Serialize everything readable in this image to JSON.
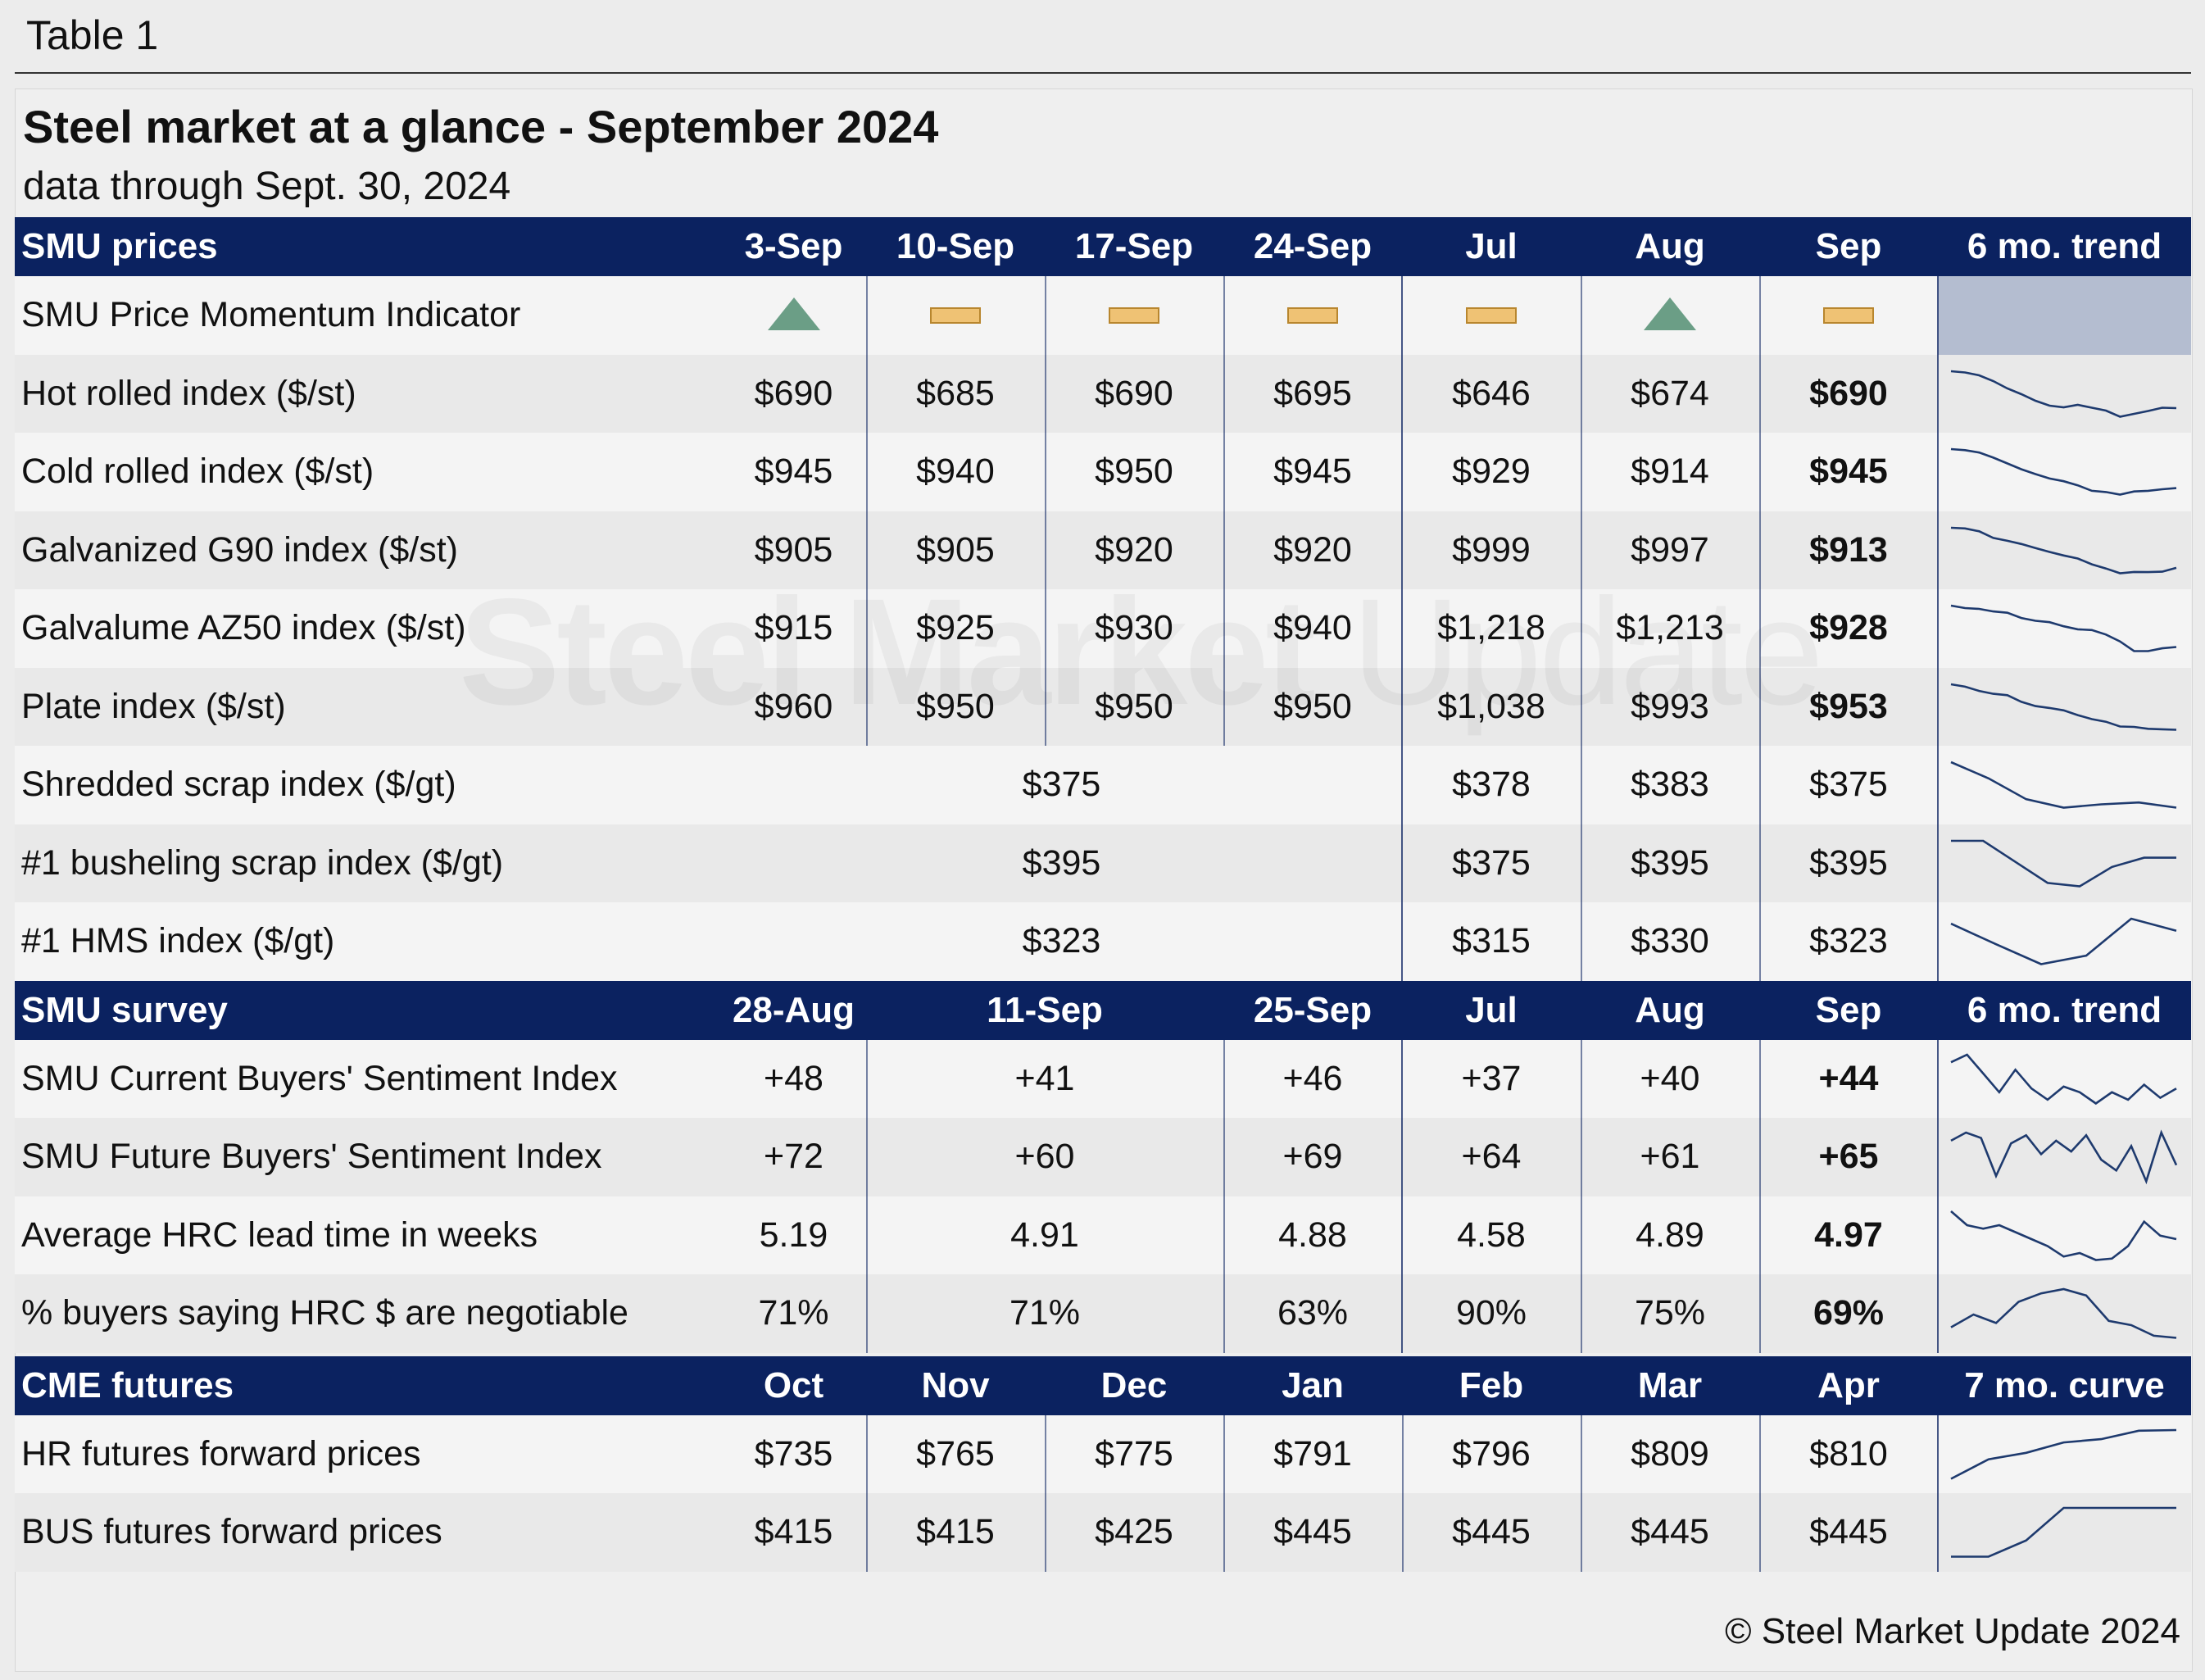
{
  "table_label": "Table 1",
  "title": "Steel market at a glance - September 2024",
  "subtitle": "data through Sept. 30, 2024",
  "copyright": "© Steel Market Update 2024",
  "watermark": {
    "bold": "Steel Market",
    "light": "Update"
  },
  "colors": {
    "header_bg": "#0b2260",
    "row_light": "#f4f4f4",
    "row_dark": "#e9e9e9",
    "trend_line": "#1e3a6e",
    "momentum_up": "#6b9e86",
    "momentum_neutral": "#efc274",
    "momentum_trend_bg": "#b4bdd0"
  },
  "chart_data": {
    "type": "table",
    "sections": [
      {
        "name": "SMU prices",
        "header": [
          "SMU prices",
          "3-Sep",
          "10-Sep",
          "17-Sep",
          "24-Sep",
          "Jul",
          "Aug",
          "Sep",
          "6 mo. trend"
        ],
        "momentum": {
          "label": "SMU Price Momentum Indicator",
          "values": [
            "up-triangle-icon",
            "neutral-bar-icon",
            "neutral-bar-icon",
            "neutral-bar-icon",
            "neutral-bar-icon",
            "up-triangle-icon",
            "neutral-bar-icon"
          ]
        },
        "rows": [
          {
            "label": "Hot rolled index ($/st)",
            "values": [
              "$690",
              "$685",
              "$690",
              "$695",
              "$646",
              "$674",
              "$690"
            ],
            "bold_last": true,
            "trend": [
              868,
              862,
              848,
              820,
              784,
              756,
              724,
              700,
              692,
              704,
              690,
              676,
              646,
              660,
              674,
              690,
              688
            ]
          },
          {
            "label": "Cold rolled index ($/st)",
            "values": [
              "$945",
              "$940",
              "$950",
              "$945",
              "$929",
              "$914",
              "$945"
            ],
            "bold_last": true,
            "trend": [
              1180,
              1174,
              1160,
              1130,
              1096,
              1062,
              1034,
              1008,
              992,
              968,
              936,
              929,
              914,
              932,
              936,
              945,
              952
            ]
          },
          {
            "label": "Galvanized G90 index ($/st)",
            "values": [
              "$905",
              "$905",
              "$920",
              "$920",
              "$999",
              "$997",
              "$913"
            ],
            "bold_last": true,
            "trend": [
              1192,
              1188,
              1170,
              1128,
              1110,
              1090,
              1064,
              1040,
              1018,
              999,
              962,
              936,
              906,
              914,
              913,
              916,
              940
            ]
          },
          {
            "label": "Galvalume AZ50 index ($/st)",
            "values": [
              "$915",
              "$925",
              "$930",
              "$940",
              "$1,218",
              "$1,213",
              "$928"
            ],
            "bold_last": true,
            "trend": [
              1390,
              1372,
              1366,
              1348,
              1338,
              1300,
              1280,
              1270,
              1240,
              1218,
              1213,
              1180,
              1130,
              1060,
              1060,
              1080,
              1090
            ]
          },
          {
            "label": "Plate index ($/st)",
            "values": [
              "$960",
              "$950",
              "$950",
              "$950",
              "$1,038",
              "$993",
              "$953"
            ],
            "bold_last": true,
            "trend": [
              1140,
              1130,
              1112,
              1100,
              1094,
              1066,
              1048,
              1040,
              1030,
              1010,
              993,
              982,
              962,
              960,
              952,
              950,
              948
            ]
          },
          {
            "label": "Shredded scrap index ($/gt)",
            "merged_value": "$375",
            "values": [
              "$378",
              "$383",
              "$375"
            ],
            "bold_last": false,
            "trend": [
              445,
              420,
              388,
              375,
              380,
              383,
              375
            ]
          },
          {
            "label": "#1 busheling scrap index ($/gt)",
            "merged_value": "$395",
            "values": [
              "$375",
              "$395",
              "$395"
            ],
            "bold_last": false,
            "trend": [
              520,
              520,
              470,
              420,
              412,
              458,
              480,
              480
            ]
          },
          {
            "label": "#1 HMS index ($/gt)",
            "merged_value": "$323",
            "values": [
              "$315",
              "$330",
              "$323"
            ],
            "bold_last": false,
            "trend": [
              375,
              346,
              318,
              330,
              382,
              365
            ]
          }
        ]
      },
      {
        "name": "SMU survey",
        "header": [
          "SMU survey",
          "28-Aug",
          "11-Sep",
          "25-Sep",
          "Jul",
          "Aug",
          "Sep",
          "6 mo. trend"
        ],
        "rows": [
          {
            "label": "SMU Current Buyers' Sentiment Index",
            "values": [
              "+48",
              "+41",
              "+46",
              "+37",
              "+40",
              "+44"
            ],
            "bold_last": true,
            "trend": [
              60,
              64,
              54,
              44,
              56,
              46,
              40,
              47,
              44,
              38,
              44,
              40,
              48,
              41,
              46
            ]
          },
          {
            "label": "SMU Future Buyers' Sentiment Index",
            "values": [
              "+72",
              "+60",
              "+69",
              "+64",
              "+61",
              "+65"
            ],
            "bold_last": true,
            "trend": [
              71,
              74,
              72,
              58,
              70,
              73,
              66,
              71,
              67,
              73,
              64,
              60,
              69,
              56,
              74,
              62
            ]
          },
          {
            "label": "Average HRC lead time in weeks",
            "values": [
              "5.19",
              "4.91",
              "4.88",
              "4.58",
              "4.89",
              "4.97"
            ],
            "bold_last": true,
            "trend": [
              5.6,
              5.4,
              5.35,
              5.4,
              5.3,
              5.2,
              5.1,
              4.95,
              5.0,
              4.9,
              4.92,
              5.1,
              5.45,
              5.25,
              5.2
            ]
          },
          {
            "label": "% buyers saying HRC $ are negotiable",
            "values": [
              "71%",
              "71%",
              "63%",
              "90%",
              "75%",
              "69%"
            ],
            "bold_last": true,
            "trend": [
              68,
              74,
              70,
              80,
              84,
              86,
              83,
              71,
              69,
              64,
              63
            ]
          }
        ]
      },
      {
        "name": "CME futures",
        "header": [
          "CME futures",
          "Oct",
          "Nov",
          "Dec",
          "Jan",
          "Feb",
          "Mar",
          "Apr",
          "7 mo. curve"
        ],
        "rows": [
          {
            "label": "HR futures forward prices",
            "values": [
              "$735",
              "$765",
              "$775",
              "$791",
              "$796",
              "$809",
              "$810"
            ],
            "bold_last": false,
            "trend": [
              735,
              765,
              775,
              791,
              796,
              809,
              810
            ]
          },
          {
            "label": "BUS futures forward prices",
            "values": [
              "$415",
              "$415",
              "$425",
              "$445",
              "$445",
              "$445",
              "$445"
            ],
            "bold_last": false,
            "trend": [
              415,
              415,
              425,
              445,
              445,
              445,
              445
            ]
          }
        ]
      }
    ]
  }
}
